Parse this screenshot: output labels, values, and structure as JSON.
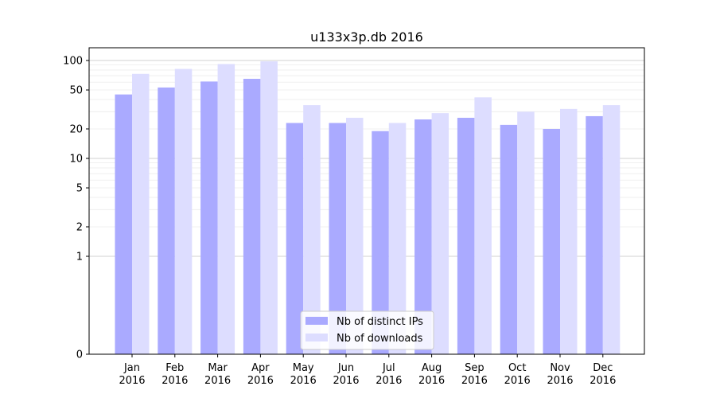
{
  "chart_data": {
    "type": "bar",
    "title": "u133x3p.db 2016",
    "xlabel": "",
    "ylabel": "",
    "y_scale": "symlog",
    "ylim": [
      0,
      130
    ],
    "yticks": [
      0,
      1,
      2,
      5,
      10,
      20,
      50,
      100
    ],
    "grid": true,
    "legend_position": "lower-center",
    "categories": [
      [
        "Jan",
        "2016"
      ],
      [
        "Feb",
        "2016"
      ],
      [
        "Mar",
        "2016"
      ],
      [
        "Apr",
        "2016"
      ],
      [
        "May",
        "2016"
      ],
      [
        "Jun",
        "2016"
      ],
      [
        "Jul",
        "2016"
      ],
      [
        "Aug",
        "2016"
      ],
      [
        "Sep",
        "2016"
      ],
      [
        "Oct",
        "2016"
      ],
      [
        "Nov",
        "2016"
      ],
      [
        "Dec",
        "2016"
      ]
    ],
    "series": [
      {
        "name": "Nb of distinct IPs",
        "color": "#aaaaff",
        "values": [
          45,
          53,
          61,
          65,
          23,
          23,
          19,
          25,
          26,
          22,
          20,
          27
        ]
      },
      {
        "name": "Nb of downloads",
        "color": "#ddddff",
        "values": [
          73,
          82,
          92,
          98,
          35,
          26,
          23,
          29,
          42,
          30,
          32,
          35
        ]
      }
    ]
  }
}
